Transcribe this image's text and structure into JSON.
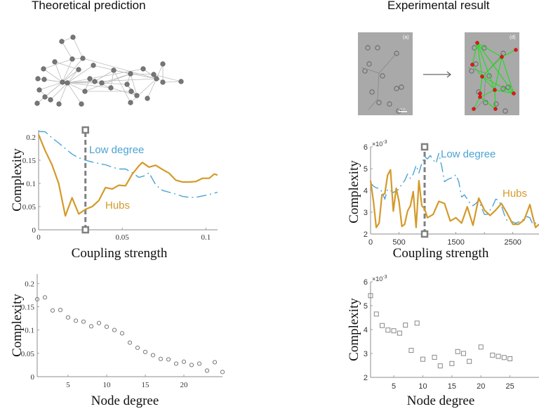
{
  "titles": {
    "left": "Theoretical prediction",
    "right": "Experimental result"
  },
  "images": {
    "network_graph_label": "network-graph",
    "micrograph_a_label": "(a)",
    "micrograph_d_label": "(d)",
    "scale_bar_label": "100 µm",
    "arrow": "→"
  },
  "colors": {
    "hubs": "#d49a2a",
    "low_degree": "#4ba3d3",
    "marker": "#808080",
    "axis": "#8c8c8c",
    "network_edge": "#bbbbbb",
    "network_node": "#777777",
    "exp_edge": "#22dd22",
    "exp_node": "#ee1111"
  },
  "chart_data": [
    {
      "id": "theory-coupling",
      "type": "line",
      "title": "",
      "xlabel": "Coupling strength",
      "ylabel": "Complexity",
      "xlim": [
        0,
        0.107
      ],
      "ylim": [
        0,
        0.215
      ],
      "xticks": [
        0,
        0.05,
        0.1
      ],
      "xtick_labels": [
        "0",
        "0.05",
        "0.1"
      ],
      "yticks": [
        0,
        0.05,
        0.1,
        0.15,
        0.2
      ],
      "ytick_labels": [
        "0",
        "0.05",
        "0.1",
        "0.15",
        "0.2"
      ],
      "grid": false,
      "marker_line_x": 0.028,
      "series": [
        {
          "name": "Low degree",
          "style": "dash-dot",
          "x": [
            0,
            0.004,
            0.008,
            0.012,
            0.016,
            0.02,
            0.024,
            0.028,
            0.032,
            0.036,
            0.04,
            0.044,
            0.048,
            0.052,
            0.056,
            0.06,
            0.064,
            0.066,
            0.07,
            0.074,
            0.078,
            0.082,
            0.086,
            0.09,
            0.094,
            0.098,
            0.102,
            0.107
          ],
          "y": [
            0.212,
            0.211,
            0.198,
            0.187,
            0.175,
            0.163,
            0.155,
            0.15,
            0.146,
            0.143,
            0.14,
            0.135,
            0.131,
            0.131,
            0.123,
            0.113,
            0.117,
            0.123,
            0.097,
            0.085,
            0.081,
            0.077,
            0.072,
            0.07,
            0.07,
            0.073,
            0.076,
            0.081
          ]
        },
        {
          "name": "Hubs",
          "style": "solid",
          "x": [
            0,
            0.004,
            0.008,
            0.012,
            0.016,
            0.02,
            0.024,
            0.028,
            0.032,
            0.036,
            0.04,
            0.044,
            0.048,
            0.052,
            0.056,
            0.06,
            0.062,
            0.066,
            0.07,
            0.074,
            0.078,
            0.082,
            0.086,
            0.09,
            0.094,
            0.098,
            0.102,
            0.105,
            0.107
          ],
          "y": [
            0.205,
            0.17,
            0.14,
            0.1,
            0.03,
            0.069,
            0.034,
            0.044,
            0.05,
            0.063,
            0.091,
            0.088,
            0.096,
            0.095,
            0.12,
            0.138,
            0.145,
            0.135,
            0.139,
            0.13,
            0.122,
            0.107,
            0.103,
            0.103,
            0.104,
            0.111,
            0.111,
            0.12,
            0.118
          ]
        }
      ],
      "annotations": [
        {
          "text": "Low degree",
          "series": "Low degree"
        },
        {
          "text": "Hubs",
          "series": "Hubs"
        }
      ]
    },
    {
      "id": "experiment-coupling",
      "type": "line",
      "title": "",
      "xlabel": "Coupling strength",
      "ylabel": "Complexity",
      "y_exponent_label": "×10",
      "y_exponent": "-3",
      "xlim": [
        0,
        2960
      ],
      "ylim": [
        2,
        6
      ],
      "xticks": [
        0,
        500,
        1000,
        1500,
        2000,
        2500
      ],
      "xtick_labels": [
        "0",
        "500",
        "",
        "1500",
        "",
        "2500"
      ],
      "yticks": [
        2,
        3,
        4,
        5,
        6
      ],
      "ytick_labels": [
        "2",
        "3",
        "4",
        "5",
        "6"
      ],
      "grid": false,
      "marker_line_x": 950,
      "series": [
        {
          "name": "Low degree",
          "style": "dash-dot",
          "x": [
            0,
            50,
            100,
            150,
            200,
            250,
            300,
            350,
            400,
            450,
            500,
            550,
            600,
            650,
            700,
            750,
            800,
            850,
            900,
            950,
            1000,
            1050,
            1100,
            1150,
            1200,
            1250,
            1300,
            1350,
            1400,
            1450,
            1500,
            1550,
            1600,
            1650,
            1700,
            1750,
            1800,
            1850,
            1900,
            1950,
            2000,
            2050,
            2100,
            2150,
            2200,
            2250,
            2300,
            2350,
            2400,
            2450,
            2500,
            2550,
            2600,
            2650,
            2700,
            2750,
            2800,
            2850,
            2900,
            2960
          ],
          "y": [
            4.35,
            4.2,
            4.12,
            4.1,
            3.95,
            3.6,
            4.05,
            4.0,
            3.9,
            4.0,
            4.05,
            4.3,
            4.45,
            4.75,
            4.55,
            4.75,
            5.15,
            4.8,
            5.25,
            5.55,
            5.45,
            5.6,
            5.4,
            5.25,
            5.7,
            5.1,
            4.4,
            4.5,
            4.55,
            4.6,
            4.72,
            4.4,
            3.7,
            3.8,
            3.6,
            3.4,
            3.3,
            3.4,
            3.55,
            3.2,
            2.9,
            2.9,
            3.1,
            3.3,
            3.6,
            3.55,
            3.3,
            2.9,
            2.6,
            2.6,
            2.55,
            2.5,
            2.55,
            2.6,
            2.7,
            2.8,
            2.75,
            2.45,
            2.5,
            2.55
          ]
        },
        {
          "name": "Hubs",
          "style": "solid",
          "x": [
            0,
            50,
            100,
            150,
            200,
            250,
            300,
            350,
            400,
            450,
            500,
            550,
            600,
            650,
            700,
            750,
            800,
            850,
            900,
            950,
            1000,
            1100,
            1200,
            1300,
            1400,
            1500,
            1600,
            1700,
            1800,
            1900,
            2000,
            2100,
            2200,
            2300,
            2400,
            2500,
            2600,
            2700,
            2750,
            2800,
            2850,
            2900,
            2960
          ],
          "y": [
            4.45,
            3.5,
            2.3,
            2.5,
            3.8,
            3.85,
            4.7,
            4.95,
            3.05,
            4.1,
            3.5,
            2.35,
            2.45,
            3.05,
            3.3,
            3.95,
            2.3,
            4.45,
            3.3,
            3.15,
            2.75,
            2.9,
            3.5,
            3.4,
            2.6,
            2.75,
            2.5,
            3.25,
            2.4,
            3.65,
            3.1,
            2.85,
            3.1,
            3.4,
            2.95,
            2.45,
            2.45,
            2.65,
            3.0,
            3.35,
            2.8,
            2.3,
            2.45
          ]
        }
      ],
      "annotations": [
        {
          "text": "Low degree",
          "series": "Low degree"
        },
        {
          "text": "Hubs",
          "series": "Hubs"
        }
      ]
    },
    {
      "id": "theory-degree",
      "type": "scatter",
      "title": "",
      "xlabel": "Node degree",
      "ylabel": "Complexity",
      "xlim": [
        1,
        25
      ],
      "ylim": [
        0,
        0.22
      ],
      "xticks": [
        5,
        10,
        15,
        20
      ],
      "xtick_labels": [
        "5",
        "10",
        "15",
        "20"
      ],
      "yticks": [
        0,
        0.05,
        0.1,
        0.15,
        0.2
      ],
      "ytick_labels": [
        "0",
        "0.05",
        "0.1",
        "0.15",
        "0.2"
      ],
      "grid": false,
      "marker": "circle",
      "x": [
        1,
        2,
        3,
        4,
        5,
        6,
        7,
        8,
        9,
        10,
        11,
        12,
        13,
        14,
        15,
        16,
        17,
        18,
        19,
        20,
        21,
        22,
        23,
        24,
        25
      ],
      "y": [
        0.166,
        0.17,
        0.142,
        0.143,
        0.127,
        0.12,
        0.118,
        0.108,
        0.115,
        0.107,
        0.1,
        0.093,
        0.073,
        0.062,
        0.053,
        0.046,
        0.038,
        0.037,
        0.028,
        0.032,
        0.025,
        0.028,
        0.013,
        0.031,
        0.01
      ]
    },
    {
      "id": "experiment-degree",
      "type": "scatter",
      "title": "",
      "xlabel": "Node degree",
      "ylabel": "Complexity",
      "y_exponent_label": "×10",
      "y_exponent": "-3",
      "xlim": [
        1,
        30
      ],
      "ylim": [
        2,
        6
      ],
      "xticks": [
        5,
        10,
        15,
        20,
        25
      ],
      "xtick_labels": [
        "5",
        "10",
        "15",
        "20",
        "25"
      ],
      "yticks": [
        2,
        3,
        4,
        5,
        6
      ],
      "ytick_labels": [
        "2",
        "3",
        "4",
        "5",
        "6"
      ],
      "grid": false,
      "marker": "square",
      "x": [
        1,
        2,
        3,
        4,
        5,
        6,
        7,
        8,
        9,
        10,
        12,
        13,
        15,
        16,
        17,
        18,
        20,
        22,
        23,
        24,
        25
      ],
      "y": [
        5.42,
        4.65,
        4.17,
        3.98,
        3.95,
        3.85,
        4.19,
        3.13,
        4.27,
        2.76,
        2.84,
        2.48,
        2.58,
        3.08,
        3.0,
        2.67,
        3.27,
        2.93,
        2.88,
        2.83,
        2.78
      ]
    }
  ]
}
